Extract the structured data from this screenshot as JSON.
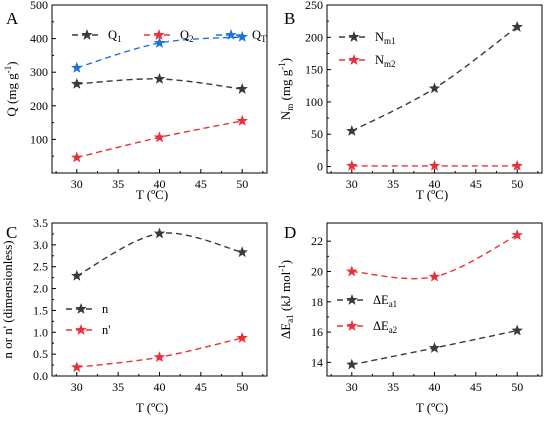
{
  "chart_data": [
    {
      "panel": "A",
      "type": "line",
      "x": [
        30,
        40,
        50
      ],
      "xlim": [
        27,
        53
      ],
      "xticks": [
        30,
        35,
        40,
        45,
        50
      ],
      "ylim": [
        0,
        500
      ],
      "yticks": [
        100,
        200,
        300,
        400,
        500
      ],
      "xlabel": "T (ºC)",
      "ylabel": {
        "base": "Q (mg g",
        "sup": "-1",
        "end": ")"
      },
      "legend_position": "top",
      "series": [
        {
          "name": {
            "base": "Q",
            "sub": "1"
          },
          "color": "#3a3a3a",
          "values": [
            265,
            280,
            250
          ]
        },
        {
          "name": {
            "base": "Q",
            "sub": "2"
          },
          "color": "#e8323b",
          "values": [
            46,
            106,
            155
          ]
        },
        {
          "name": {
            "base": "Q",
            "sub": "T"
          },
          "color": "#1f73d8",
          "values": [
            313,
            387,
            405
          ]
        }
      ]
    },
    {
      "panel": "B",
      "type": "line",
      "x": [
        30,
        40,
        50
      ],
      "xlim": [
        27,
        53
      ],
      "xticks": [
        30,
        35,
        40,
        45,
        50
      ],
      "ylim": [
        -10,
        250
      ],
      "yticks": [
        0,
        50,
        100,
        150,
        200,
        250
      ],
      "xlabel": "T (ºC)",
      "ylabel": {
        "base": "N",
        "sub": "m",
        "rest": " (mg g",
        "sup": "-1",
        "end": ")"
      },
      "legend_position": "top-left",
      "series": [
        {
          "name": {
            "base": "N",
            "sub": "m1"
          },
          "color": "#3a3a3a",
          "values": [
            55,
            121,
            216
          ]
        },
        {
          "name": {
            "base": "N",
            "sub": "m2"
          },
          "color": "#e8323b",
          "values": [
            1,
            1,
            1
          ]
        }
      ]
    },
    {
      "panel": "C",
      "type": "line",
      "x": [
        30,
        40,
        50
      ],
      "xlim": [
        27,
        53
      ],
      "xticks": [
        30,
        35,
        40,
        45,
        50
      ],
      "ylim": [
        0,
        3.5
      ],
      "yticks": [
        0.0,
        0.5,
        1.0,
        1.5,
        2.0,
        2.5,
        3.0,
        3.5
      ],
      "xlabel": "T (ºC)",
      "ylabel": {
        "base": "n or n' (dimensionless)"
      },
      "legend_position": "left",
      "series": [
        {
          "name": {
            "base": "n"
          },
          "color": "#3a3a3a",
          "values": [
            2.29,
            3.26,
            2.83
          ]
        },
        {
          "name": {
            "base": "n'"
          },
          "color": "#e8323b",
          "values": [
            0.2,
            0.43,
            0.87
          ]
        }
      ]
    },
    {
      "panel": "D",
      "type": "line",
      "x": [
        30,
        40,
        50
      ],
      "xlim": [
        27,
        53
      ],
      "xticks": [
        30,
        35,
        40,
        45,
        50
      ],
      "ylim": [
        13.1,
        23.2
      ],
      "yticks": [
        14,
        16,
        18,
        20,
        22
      ],
      "xlabel": "T (ºC)",
      "ylabel": {
        "base": "ΔE",
        "sub": "a1",
        "rest": " (kJ mol",
        "sup": "-1",
        "end": ")"
      },
      "legend_position": "left",
      "series": [
        {
          "name": {
            "base": "ΔE",
            "sub": "a1"
          },
          "color": "#3a3a3a",
          "values": [
            13.85,
            14.95,
            16.1
          ]
        },
        {
          "name": {
            "base": "ΔE",
            "sub": "a2"
          },
          "color": "#e8323b",
          "values": [
            20.0,
            19.65,
            22.4
          ]
        }
      ]
    }
  ]
}
